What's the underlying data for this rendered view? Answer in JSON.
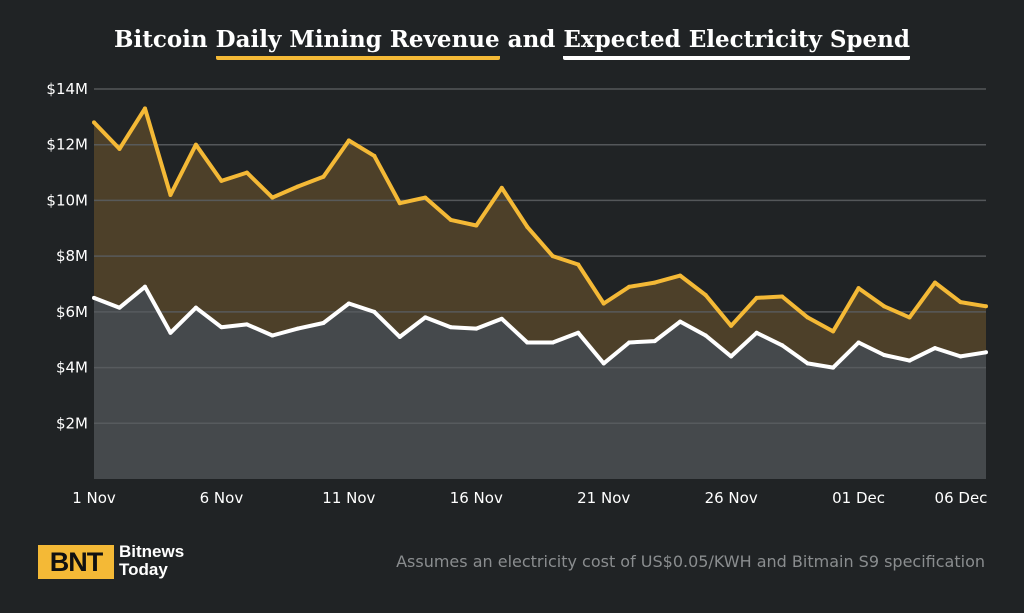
{
  "title": {
    "prefix": "Bitcoin ",
    "part1": "Daily Mining Revenue",
    "middle": " and ",
    "part2": "Expected Electricity Spend"
  },
  "footer": {
    "logo_text": "BNT",
    "brand_line1": "Bitnews",
    "brand_line2": "Today",
    "note": "Assumes an electricity cost of US$0.05/KWH and Bitmain S9 specification"
  },
  "colors": {
    "background": "#202325",
    "revenue_line": "#f4b936",
    "revenue_fill": "#4d4029",
    "electricity_line": "#ffffff",
    "electricity_fill": "#45494c",
    "grid": "#5a5d60"
  },
  "chart_data": {
    "type": "area",
    "title": "Bitcoin Daily Mining Revenue and Expected Electricity Spend",
    "xlabel": "",
    "ylabel": "",
    "ylim": [
      0,
      14
    ],
    "grid": true,
    "y_ticks": [
      2,
      4,
      6,
      8,
      10,
      12,
      14
    ],
    "y_tick_labels": [
      "$2M",
      "$4M",
      "$6M",
      "$8M",
      "$10M",
      "$12M",
      "$14M"
    ],
    "x_tick_labels": [
      {
        "index": 0,
        "label": "1 Nov"
      },
      {
        "index": 5,
        "label": "6 Nov"
      },
      {
        "index": 10,
        "label": "11 Nov"
      },
      {
        "index": 15,
        "label": "16 Nov"
      },
      {
        "index": 20,
        "label": "21 Nov"
      },
      {
        "index": 25,
        "label": "26 Nov"
      },
      {
        "index": 30,
        "label": "01 Dec"
      },
      {
        "index": 35,
        "label": "06 Dec"
      }
    ],
    "series": [
      {
        "name": "Daily Mining Revenue",
        "values": [
          12.8,
          11.85,
          13.3,
          10.2,
          12.0,
          10.7,
          11.0,
          10.1,
          10.5,
          10.85,
          12.15,
          11.6,
          9.9,
          10.1,
          9.3,
          9.1,
          10.45,
          9.05,
          8.0,
          7.7,
          6.3,
          6.9,
          7.05,
          7.3,
          6.6,
          5.5,
          6.5,
          6.55,
          5.8,
          5.3,
          6.85,
          6.2,
          5.8,
          7.05,
          6.35,
          6.2
        ]
      },
      {
        "name": "Expected Electricity Spend",
        "values": [
          6.5,
          6.15,
          6.9,
          5.25,
          6.15,
          5.45,
          5.55,
          5.15,
          5.4,
          5.6,
          6.3,
          6.0,
          5.1,
          5.8,
          5.45,
          5.4,
          5.75,
          4.9,
          4.9,
          5.25,
          4.15,
          4.9,
          4.95,
          5.65,
          5.15,
          4.4,
          5.25,
          4.8,
          4.15,
          4.0,
          4.9,
          4.45,
          4.25,
          4.7,
          4.4,
          4.55
        ]
      }
    ]
  }
}
